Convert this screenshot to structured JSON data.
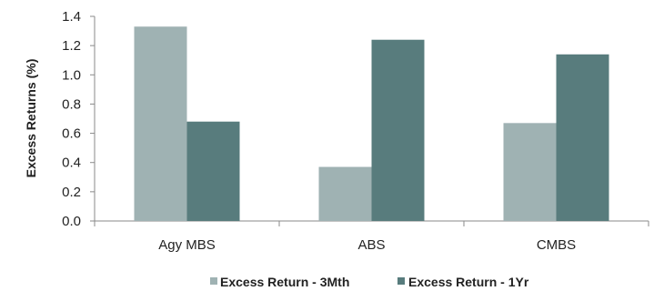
{
  "chart_data": {
    "type": "bar",
    "categories": [
      "Agy MBS",
      "ABS",
      "CMBS"
    ],
    "series": [
      {
        "name": "Excess Return - 3Mth",
        "values": [
          1.33,
          0.37,
          0.67
        ],
        "color": "#9fb2b3"
      },
      {
        "name": "Excess Return - 1Yr",
        "values": [
          0.68,
          1.24,
          1.14
        ],
        "color": "#587c7d"
      }
    ],
    "title": "",
    "xlabel": "",
    "ylabel": "Excess Returns (%)",
    "ylim": [
      0,
      1.4
    ],
    "yticks": [
      "0.0",
      "0.2",
      "0.4",
      "0.6",
      "0.8",
      "1.0",
      "1.2",
      "1.4"
    ],
    "grid": false,
    "legend_position": "bottom"
  }
}
